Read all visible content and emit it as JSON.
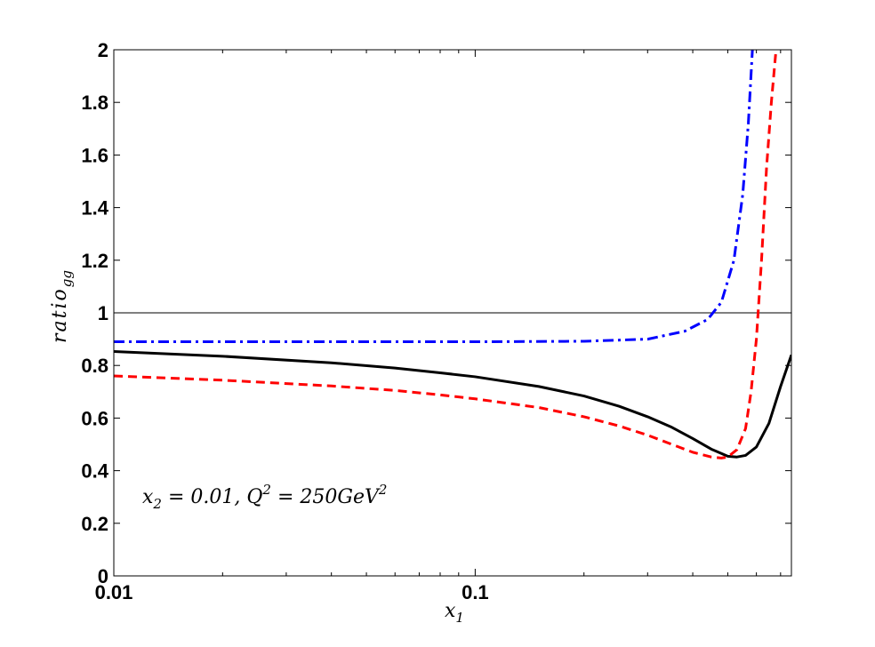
{
  "chart_data": {
    "type": "line",
    "xlabel": "x",
    "xlabel_sub": "1",
    "ylabel": "ratio",
    "ylabel_sub": "gg",
    "xscale": "log",
    "xlim": [
      0.01,
      0.75
    ],
    "ylim": [
      0,
      2
    ],
    "x_ticks": [
      {
        "value": 0.01,
        "label": "0.01"
      },
      {
        "value": 0.1,
        "label": "0.1"
      }
    ],
    "y_ticks": [
      {
        "value": 0,
        "label": "0"
      },
      {
        "value": 0.2,
        "label": "0.2"
      },
      {
        "value": 0.4,
        "label": "0.4"
      },
      {
        "value": 0.6,
        "label": "0.6"
      },
      {
        "value": 0.8,
        "label": "0.8"
      },
      {
        "value": 1,
        "label": "1"
      },
      {
        "value": 1.2,
        "label": "1.2"
      },
      {
        "value": 1.4,
        "label": "1.4"
      },
      {
        "value": 1.6,
        "label": "1.6"
      },
      {
        "value": 1.8,
        "label": "1.8"
      },
      {
        "value": 2,
        "label": "2"
      }
    ],
    "reference_line": {
      "y": 1,
      "color": "#000000"
    },
    "annotation": {
      "parts": [
        {
          "text": "x",
          "sub": "2"
        },
        {
          "text": " = 0.01, Q"
        },
        {
          "sup": "2"
        },
        {
          "text": " = 250GeV"
        },
        {
          "sup": "2"
        }
      ]
    },
    "grid": false,
    "series": [
      {
        "color": "#000000",
        "style": "solid",
        "points": [
          [
            0.01,
            0.853
          ],
          [
            0.02,
            0.835
          ],
          [
            0.04,
            0.81
          ],
          [
            0.06,
            0.79
          ],
          [
            0.08,
            0.772
          ],
          [
            0.1,
            0.757
          ],
          [
            0.15,
            0.72
          ],
          [
            0.2,
            0.684
          ],
          [
            0.25,
            0.645
          ],
          [
            0.3,
            0.605
          ],
          [
            0.35,
            0.565
          ],
          [
            0.4,
            0.522
          ],
          [
            0.45,
            0.482
          ],
          [
            0.5,
            0.455
          ],
          [
            0.53,
            0.452
          ],
          [
            0.56,
            0.458
          ],
          [
            0.6,
            0.49
          ],
          [
            0.65,
            0.58
          ],
          [
            0.7,
            0.72
          ],
          [
            0.75,
            0.84
          ]
        ]
      },
      {
        "color": "#ff0000",
        "style": "dashed",
        "points": [
          [
            0.01,
            0.76
          ],
          [
            0.02,
            0.744
          ],
          [
            0.04,
            0.722
          ],
          [
            0.06,
            0.705
          ],
          [
            0.08,
            0.688
          ],
          [
            0.1,
            0.673
          ],
          [
            0.15,
            0.64
          ],
          [
            0.2,
            0.605
          ],
          [
            0.25,
            0.57
          ],
          [
            0.3,
            0.535
          ],
          [
            0.35,
            0.5
          ],
          [
            0.4,
            0.47
          ],
          [
            0.45,
            0.452
          ],
          [
            0.48,
            0.448
          ],
          [
            0.5,
            0.452
          ],
          [
            0.53,
            0.48
          ],
          [
            0.56,
            0.56
          ],
          [
            0.58,
            0.7
          ],
          [
            0.6,
            0.9
          ],
          [
            0.62,
            1.2
          ],
          [
            0.64,
            1.55
          ],
          [
            0.66,
            1.8
          ],
          [
            0.68,
            2.0
          ]
        ]
      },
      {
        "color": "#0000ff",
        "style": "dash-dot",
        "points": [
          [
            0.01,
            0.89
          ],
          [
            0.05,
            0.89
          ],
          [
            0.1,
            0.89
          ],
          [
            0.2,
            0.892
          ],
          [
            0.3,
            0.9
          ],
          [
            0.38,
            0.93
          ],
          [
            0.44,
            0.975
          ],
          [
            0.48,
            1.04
          ],
          [
            0.52,
            1.2
          ],
          [
            0.55,
            1.45
          ],
          [
            0.57,
            1.72
          ],
          [
            0.585,
            2.0
          ]
        ]
      }
    ]
  }
}
